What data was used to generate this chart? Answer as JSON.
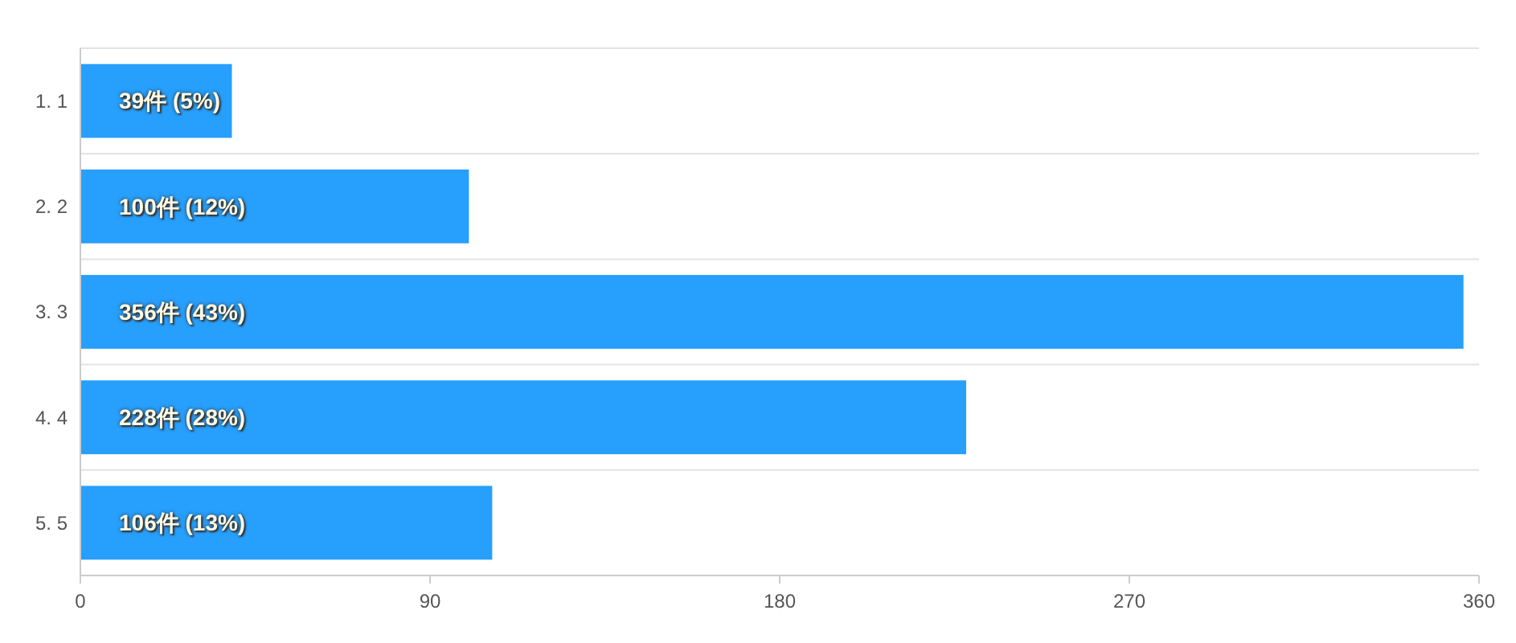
{
  "chart_data": {
    "type": "bar",
    "orientation": "horizontal",
    "categories": [
      "1. 1",
      "2. 2",
      "3. 3",
      "4. 4",
      "5. 5"
    ],
    "values": [
      39,
      100,
      356,
      228,
      106
    ],
    "value_labels": [
      "39件 (5%)",
      "100件 (12%)",
      "356件 (43%)",
      "228件 (28%)",
      "106件 (13%)"
    ],
    "color": "#279ffc",
    "xlim": [
      0,
      360
    ],
    "xticks": [
      0,
      90,
      180,
      270,
      360
    ],
    "grid": "y"
  }
}
